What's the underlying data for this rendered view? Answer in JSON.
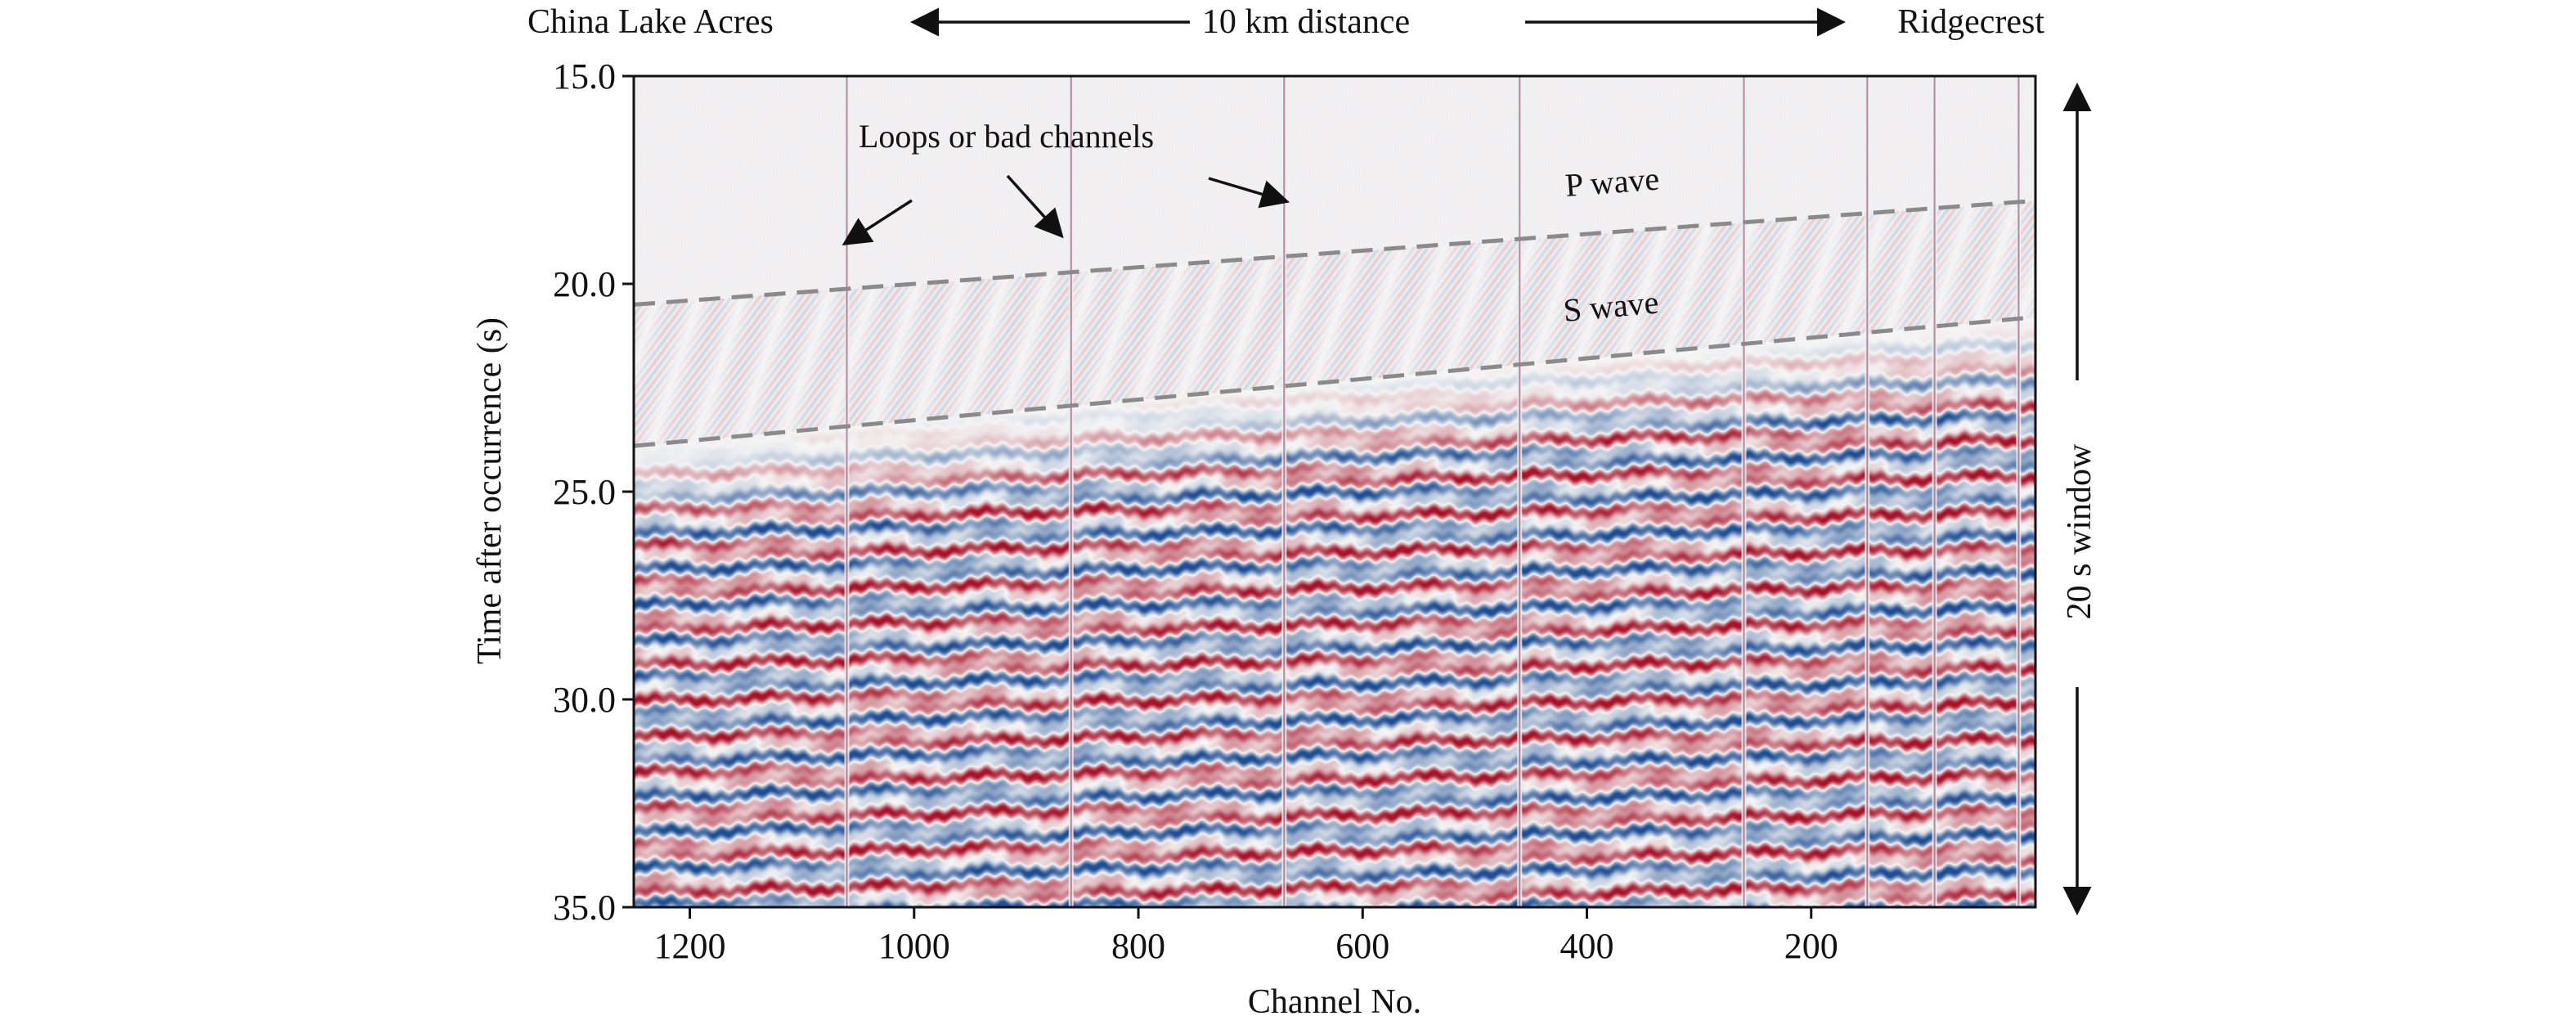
{
  "chart_data": {
    "type": "heatmap",
    "title": "",
    "xlabel": "Channel No.",
    "ylabel": "Time after occurrence (s)",
    "xlim": [
      1250,
      0
    ],
    "ylim": [
      15.0,
      35.0
    ],
    "x_ticks": [
      1200,
      1000,
      800,
      600,
      400,
      200
    ],
    "x_tick_labels": [
      "1200",
      "1000",
      "800",
      "600",
      "400",
      "200"
    ],
    "y_ticks": [
      15.0,
      20.0,
      25.0,
      30.0,
      35.0
    ],
    "y_tick_labels": [
      "15.0",
      "20.0",
      "25.0",
      "30.0",
      "35.0"
    ],
    "colormap": {
      "negative": "#1f4e94",
      "zero": "#f5f5f5",
      "positive": "#a8132a"
    },
    "top_annotation": {
      "left_label": "China Lake Acres",
      "center_label": "10 km distance",
      "right_label": "Ridgecrest"
    },
    "right_annotation": {
      "label": "20 s window",
      "from": 15.0,
      "to": 35.0
    },
    "bad_channels": [
      1060,
      860,
      670,
      460,
      260,
      150,
      90,
      15
    ],
    "bad_channel_annotation": {
      "label": "Loops or bad channels",
      "arrow_targets": [
        {
          "channel": 1060,
          "time": 19.0
        },
        {
          "channel": 870,
          "time": 18.8
        },
        {
          "channel": 670,
          "time": 18.0
        }
      ]
    },
    "phase_lines": [
      {
        "name": "P wave",
        "from": {
          "channel": 1250,
          "time": 20.5
        },
        "to": {
          "channel": 0,
          "time": 18.0
        }
      },
      {
        "name": "S wave",
        "from": {
          "channel": 1250,
          "time": 23.9
        },
        "to": {
          "channel": 0,
          "time": 20.8
        }
      }
    ]
  }
}
